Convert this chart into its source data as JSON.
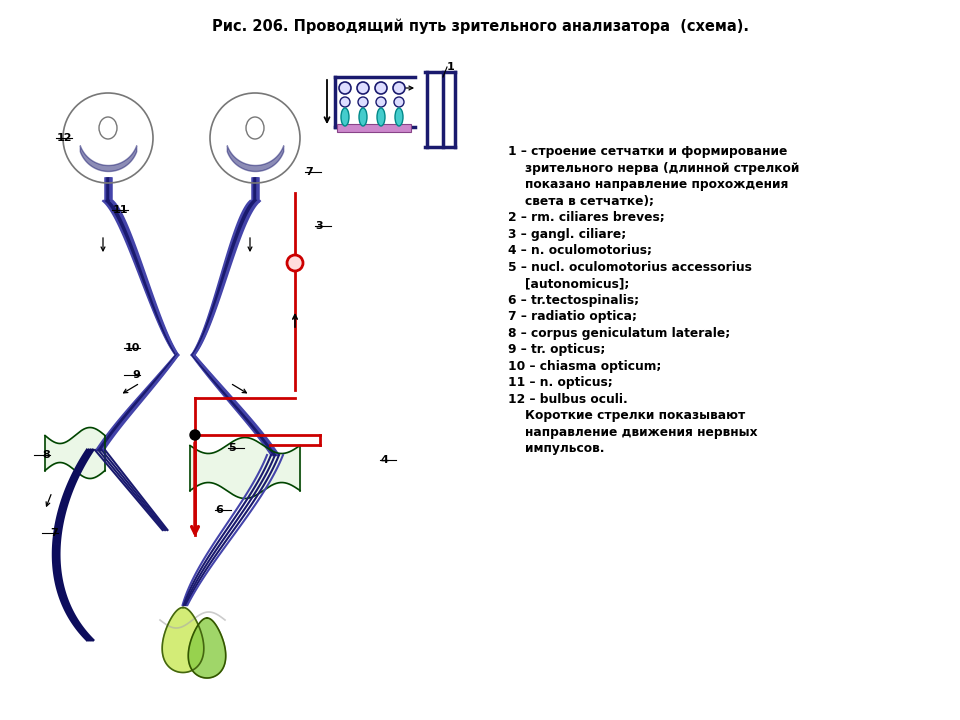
{
  "title": "Рис. 206. Проводящий путь зрительного анализатора  (схема).",
  "title_fontsize": 10.5,
  "bg_color": "#ffffff",
  "legend_lines": [
    "1 – строение сетчатки и формирование",
    "    зрительного нерва (длинной стрелкой",
    "    показано направление прохождения",
    "    света в сетчатке);",
    "2 – rm. ciliares breves;",
    "3 – gangl. ciliare;",
    "4 – n. oculomotorius;",
    "5 – nucl. oculomotorius accessorius",
    "    [autonomicus];",
    "6 – tr.tectospinalis;",
    "7 – radiatio optica;",
    "8 – corpus geniculatum laterale;",
    "9 – tr. opticus;",
    "10 – chiasma opticum;",
    "11 – n. opticus;",
    "12 – bulbus oculi.",
    "    Короткие стрелки показывают",
    "    направление движения нервных",
    "    импульсов."
  ]
}
